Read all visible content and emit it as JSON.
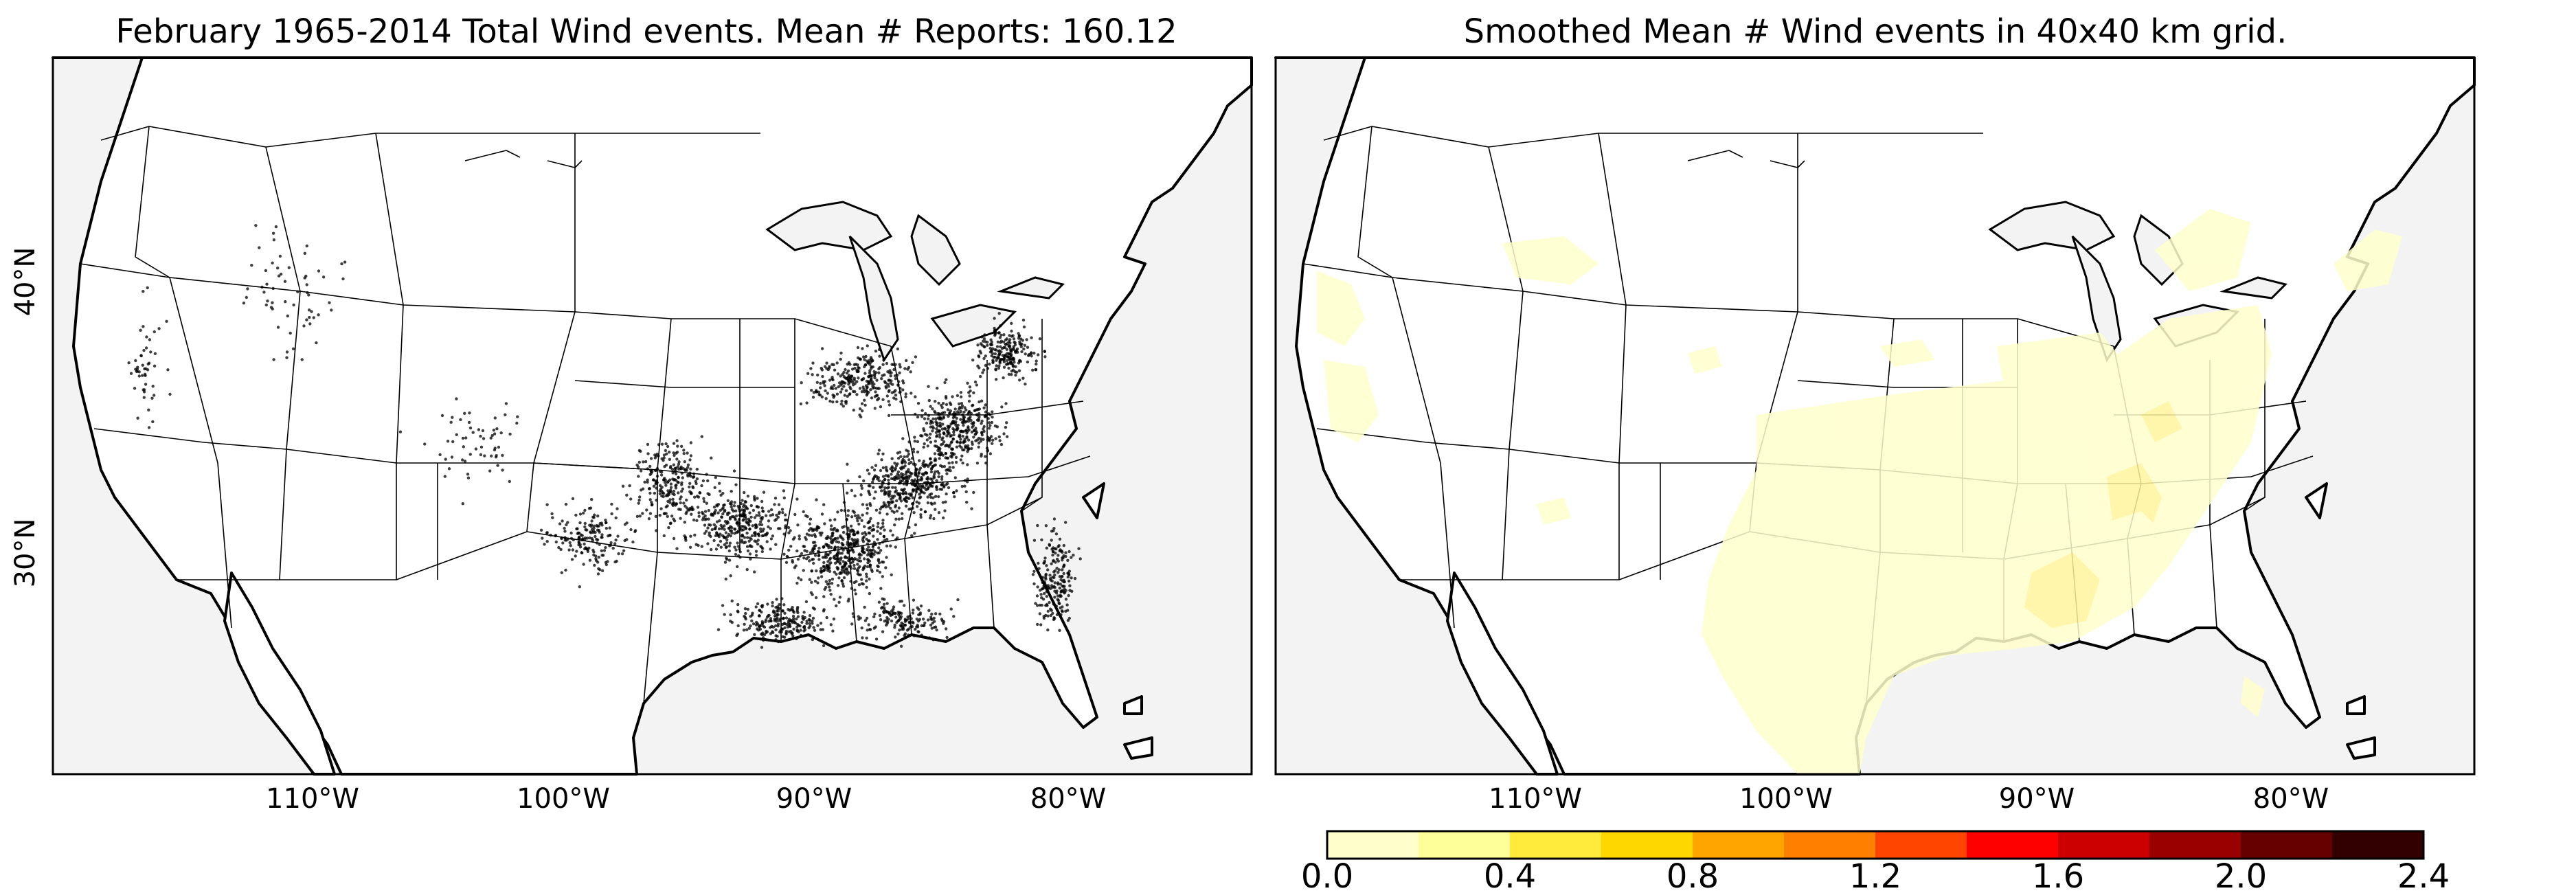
{
  "left_panel": {
    "title": "February 1965-2014 Total Wind events. Mean # Reports: 160.12",
    "lat_labels": [
      "40°N",
      "30°N"
    ],
    "lon_labels": [
      "110°W",
      "100°W",
      "90°W",
      "80°W"
    ]
  },
  "right_panel": {
    "title": "Smoothed Mean # Wind events in 40x40 km grid.",
    "lon_labels": [
      "110°W",
      "100°W",
      "90°W",
      "80°W"
    ]
  },
  "colorbar": {
    "tick_labels": [
      "0.0",
      "0.4",
      "0.8",
      "1.2",
      "1.6",
      "2.0",
      "2.4"
    ],
    "colors": [
      "#ffffcc",
      "#ffff99",
      "#ffeb3b",
      "#ffd700",
      "#ffa500",
      "#ff7f00",
      "#ff4500",
      "#ff0000",
      "#cc0000",
      "#990000",
      "#660000",
      "#330000"
    ]
  }
}
